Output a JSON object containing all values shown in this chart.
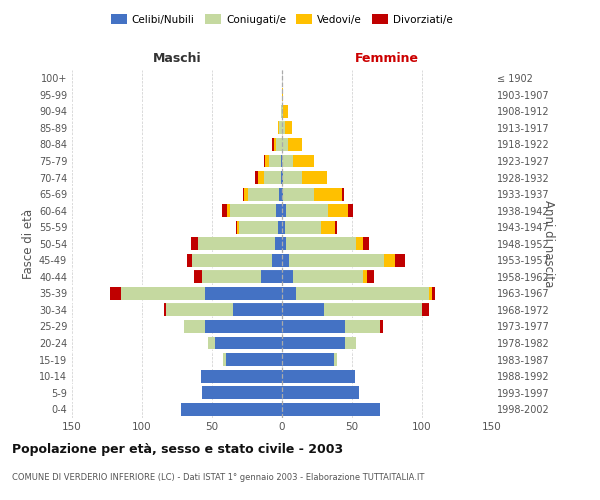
{
  "age_groups": [
    "0-4",
    "5-9",
    "10-14",
    "15-19",
    "20-24",
    "25-29",
    "30-34",
    "35-39",
    "40-44",
    "45-49",
    "50-54",
    "55-59",
    "60-64",
    "65-69",
    "70-74",
    "75-79",
    "80-84",
    "85-89",
    "90-94",
    "95-99",
    "100+"
  ],
  "birth_years": [
    "1998-2002",
    "1993-1997",
    "1988-1992",
    "1983-1987",
    "1978-1982",
    "1973-1977",
    "1968-1972",
    "1963-1967",
    "1958-1962",
    "1953-1957",
    "1948-1952",
    "1943-1947",
    "1938-1942",
    "1933-1937",
    "1928-1932",
    "1923-1927",
    "1918-1922",
    "1913-1917",
    "1908-1912",
    "1903-1907",
    "≤ 1902"
  ],
  "maschi": {
    "celibi": [
      72,
      57,
      58,
      40,
      48,
      55,
      35,
      55,
      15,
      7,
      5,
      3,
      4,
      2,
      1,
      1,
      0,
      0,
      0,
      0,
      0
    ],
    "coniugati": [
      0,
      0,
      0,
      2,
      5,
      15,
      48,
      60,
      42,
      57,
      55,
      28,
      33,
      22,
      12,
      8,
      4,
      2,
      1,
      0,
      0
    ],
    "vedovi": [
      0,
      0,
      0,
      0,
      0,
      0,
      0,
      0,
      0,
      0,
      0,
      1,
      2,
      3,
      4,
      3,
      2,
      1,
      0,
      0,
      0
    ],
    "divorziati": [
      0,
      0,
      0,
      0,
      0,
      0,
      1,
      8,
      6,
      4,
      5,
      1,
      4,
      1,
      2,
      1,
      1,
      0,
      0,
      0,
      0
    ]
  },
  "femmine": {
    "nubili": [
      70,
      55,
      52,
      37,
      45,
      45,
      30,
      10,
      8,
      5,
      3,
      2,
      3,
      1,
      1,
      0,
      0,
      0,
      0,
      0,
      0
    ],
    "coniugate": [
      0,
      0,
      0,
      2,
      8,
      25,
      70,
      95,
      50,
      68,
      50,
      26,
      30,
      22,
      13,
      8,
      4,
      2,
      1,
      0,
      0
    ],
    "vedove": [
      0,
      0,
      0,
      0,
      0,
      0,
      0,
      2,
      3,
      8,
      5,
      10,
      14,
      20,
      18,
      15,
      10,
      5,
      3,
      1,
      0
    ],
    "divorziate": [
      0,
      0,
      0,
      0,
      0,
      2,
      5,
      2,
      5,
      7,
      4,
      1,
      4,
      1,
      0,
      0,
      0,
      0,
      0,
      0,
      0
    ]
  },
  "colors": {
    "celibi_nubili": "#4472c4",
    "coniugati": "#c5d9a0",
    "vedovi": "#ffc000",
    "divorziati": "#c00000"
  },
  "xlim": 150,
  "title": "Popolazione per età, sesso e stato civile - 2003",
  "subtitle": "COMUNE DI VERDERIO INFERIORE (LC) - Dati ISTAT 1° gennaio 2003 - Elaborazione TUTTAITALIA.IT",
  "ylabel_left": "Fasce di età",
  "ylabel_right": "Anni di nascita",
  "xlabel_left": "Maschi",
  "xlabel_right": "Femmine"
}
